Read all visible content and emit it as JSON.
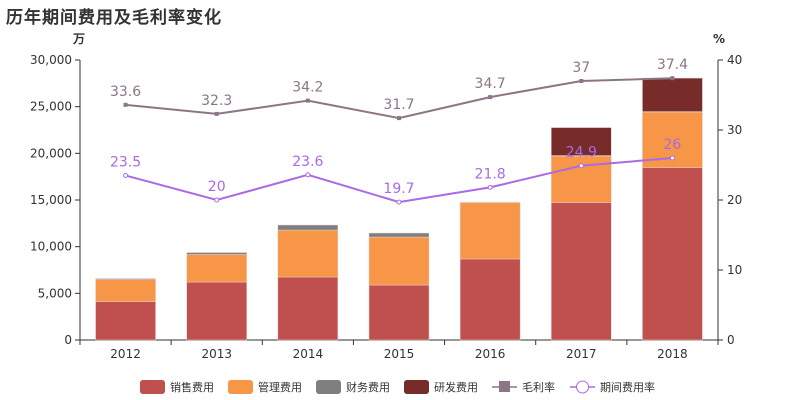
{
  "chart_data": {
    "type": "bar",
    "title": "历年期间费用及毛利率变化",
    "ylabel_left": "万",
    "ylabel_right": "%",
    "categories": [
      "2012",
      "2013",
      "2014",
      "2015",
      "2016",
      "2017",
      "2018"
    ],
    "ylim_left": [
      0,
      30000
    ],
    "yticks_left": [
      "0",
      "5,000",
      "10,000",
      "15,000",
      "20,000",
      "25,000",
      "30,000"
    ],
    "ylim_right": [
      0,
      40
    ],
    "yticks_right": [
      "0",
      "10",
      "20",
      "30",
      "40"
    ],
    "bar_series": [
      {
        "name": "销售费用",
        "color": "#c0504d",
        "values": [
          4120,
          6210,
          6750,
          5890,
          8680,
          14730,
          18480
        ]
      },
      {
        "name": "管理费用",
        "color": "#f79646",
        "values": [
          2360,
          2950,
          5030,
          5140,
          6050,
          4980,
          5940
        ]
      },
      {
        "name": "财务费用",
        "color": "#7f7f7f",
        "values": [
          100,
          210,
          540,
          430,
          50,
          50,
          50
        ]
      },
      {
        "name": "研发费用",
        "color": "#772c2a",
        "values": [
          0,
          0,
          0,
          0,
          0,
          3000,
          3590
        ]
      }
    ],
    "line_series": [
      {
        "name": "毛利率",
        "color": "#8b7687",
        "values": [
          33.6,
          32.3,
          34.2,
          31.7,
          34.7,
          37,
          37.4
        ],
        "labels": [
          "33.6",
          "32.3",
          "34.2",
          "31.7",
          "34.7",
          "37",
          "37.4"
        ]
      },
      {
        "name": "期间费用率",
        "color": "#a96ae6",
        "values": [
          23.5,
          20,
          23.6,
          19.7,
          21.8,
          24.9,
          26
        ],
        "labels": [
          "23.5",
          "20",
          "23.6",
          "19.7",
          "21.8",
          "24.9",
          "26"
        ]
      }
    ],
    "legend_position": "bottom"
  }
}
